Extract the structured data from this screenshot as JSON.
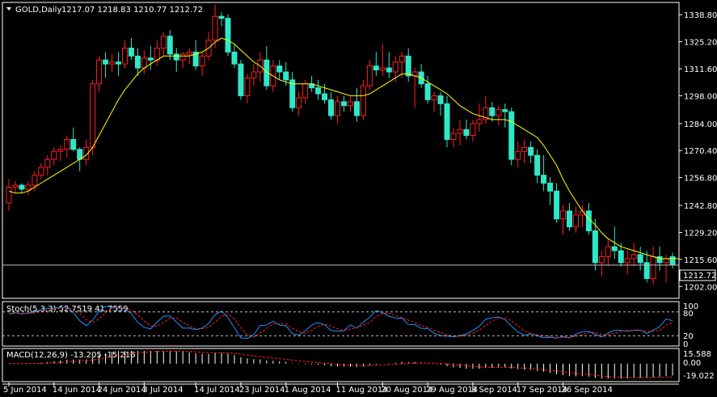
{
  "chart_data": {
    "type": "candlestick",
    "header": {
      "symbol_timeframe": "GOLD,Daily",
      "ohlc": "1217.07 1218.83 1210.77 1212.72"
    },
    "price_axis": {
      "ticks": [
        "1338.80",
        "1325.20",
        "1311.60",
        "1298.00",
        "1284.00",
        "1270.40",
        "1256.80",
        "1242.80",
        "1229.20",
        "1215.60",
        "1202.00"
      ],
      "range": [
        1196,
        1345
      ],
      "last_price": "1212.72"
    },
    "x_axis_labels": [
      "5 Jun 2014",
      "14 Jun 2014",
      "24 Jun 2014",
      "3 Jul 2014",
      "14 Jul 2014",
      "23 Jul 2014",
      "1 Aug 2014",
      "11 Aug 2014",
      "20 Aug 2014",
      "29 Aug 2014",
      "8 Sep 2014",
      "17 Sep 2014",
      "26 Sep 2014"
    ],
    "x_axis_label_index": [
      0,
      7,
      14,
      21,
      29,
      36,
      43,
      51,
      58,
      65,
      72,
      79,
      86
    ],
    "candles": [
      [
        1244,
        1256,
        1240,
        1252
      ],
      [
        1252,
        1255,
        1249,
        1253
      ],
      [
        1253,
        1254,
        1249,
        1251
      ],
      [
        1251,
        1255,
        1248,
        1253
      ],
      [
        1253,
        1260,
        1250,
        1258
      ],
      [
        1258,
        1264,
        1256,
        1262
      ],
      [
        1262,
        1268,
        1258,
        1266
      ],
      [
        1266,
        1272,
        1263,
        1270
      ],
      [
        1270,
        1273,
        1265,
        1271
      ],
      [
        1271,
        1278,
        1267,
        1276
      ],
      [
        1276,
        1282,
        1270,
        1271
      ],
      [
        1271,
        1272,
        1260,
        1266
      ],
      [
        1266,
        1276,
        1263,
        1272
      ],
      [
        1272,
        1306,
        1268,
        1304
      ],
      [
        1304,
        1318,
        1300,
        1316
      ],
      [
        1316,
        1320,
        1307,
        1314
      ],
      [
        1314,
        1319,
        1310,
        1315
      ],
      [
        1315,
        1320,
        1308,
        1314
      ],
      [
        1314,
        1326,
        1312,
        1322
      ],
      [
        1322,
        1327,
        1316,
        1318
      ],
      [
        1318,
        1322,
        1308,
        1312
      ],
      [
        1312,
        1321,
        1309,
        1317
      ],
      [
        1317,
        1323,
        1311,
        1316
      ],
      [
        1316,
        1326,
        1313,
        1322
      ],
      [
        1322,
        1330,
        1318,
        1328
      ],
      [
        1328,
        1331,
        1316,
        1319
      ],
      [
        1319,
        1322,
        1310,
        1316
      ],
      [
        1316,
        1320,
        1312,
        1319
      ],
      [
        1319,
        1322,
        1314,
        1320
      ],
      [
        1320,
        1326,
        1311,
        1313
      ],
      [
        1313,
        1320,
        1308,
        1318
      ],
      [
        1318,
        1330,
        1316,
        1326
      ],
      [
        1326,
        1344,
        1322,
        1338
      ],
      [
        1338,
        1340,
        1333,
        1337
      ],
      [
        1337,
        1339,
        1318,
        1320
      ],
      [
        1320,
        1324,
        1312,
        1314
      ],
      [
        1314,
        1316,
        1296,
        1298
      ],
      [
        1298,
        1309,
        1294,
        1307
      ],
      [
        1307,
        1314,
        1303,
        1310
      ],
      [
        1310,
        1320,
        1305,
        1316
      ],
      [
        1316,
        1323,
        1301,
        1303
      ],
      [
        1303,
        1316,
        1300,
        1313
      ],
      [
        1313,
        1316,
        1306,
        1310
      ],
      [
        1310,
        1315,
        1303,
        1306
      ],
      [
        1306,
        1310,
        1290,
        1292
      ],
      [
        1292,
        1300,
        1288,
        1297
      ],
      [
        1297,
        1306,
        1294,
        1304
      ],
      [
        1304,
        1308,
        1300,
        1302
      ],
      [
        1302,
        1306,
        1296,
        1299
      ],
      [
        1299,
        1304,
        1294,
        1296
      ],
      [
        1296,
        1300,
        1286,
        1288
      ],
      [
        1288,
        1298,
        1284,
        1295
      ],
      [
        1295,
        1298,
        1290,
        1293
      ],
      [
        1293,
        1298,
        1290,
        1295
      ],
      [
        1295,
        1302,
        1285,
        1288
      ],
      [
        1288,
        1306,
        1286,
        1303
      ],
      [
        1303,
        1316,
        1301,
        1313
      ],
      [
        1313,
        1320,
        1308,
        1311
      ],
      [
        1311,
        1324,
        1308,
        1312
      ],
      [
        1312,
        1320,
        1307,
        1310
      ],
      [
        1310,
        1318,
        1305,
        1315
      ],
      [
        1315,
        1320,
        1307,
        1318
      ],
      [
        1318,
        1322,
        1305,
        1308
      ],
      [
        1308,
        1312,
        1292,
        1310
      ],
      [
        1310,
        1314,
        1302,
        1304
      ],
      [
        1304,
        1308,
        1294,
        1296
      ],
      [
        1296,
        1300,
        1290,
        1298
      ],
      [
        1298,
        1300,
        1288,
        1294
      ],
      [
        1294,
        1298,
        1272,
        1276
      ],
      [
        1276,
        1282,
        1272,
        1279
      ],
      [
        1279,
        1286,
        1273,
        1281
      ],
      [
        1281,
        1286,
        1276,
        1278
      ],
      [
        1278,
        1286,
        1275,
        1284
      ],
      [
        1284,
        1294,
        1280,
        1286
      ],
      [
        1286,
        1298,
        1284,
        1292
      ],
      [
        1292,
        1295,
        1285,
        1288
      ],
      [
        1288,
        1293,
        1283,
        1291
      ],
      [
        1291,
        1294,
        1282,
        1290
      ],
      [
        1290,
        1292,
        1263,
        1266
      ],
      [
        1266,
        1275,
        1262,
        1270
      ],
      [
        1270,
        1276,
        1264,
        1272
      ],
      [
        1272,
        1275,
        1264,
        1268
      ],
      [
        1268,
        1271,
        1254,
        1258
      ],
      [
        1258,
        1268,
        1250,
        1254
      ],
      [
        1254,
        1257,
        1243,
        1250
      ],
      [
        1250,
        1254,
        1234,
        1236
      ],
      [
        1236,
        1243,
        1228,
        1240
      ],
      [
        1240,
        1244,
        1230,
        1232
      ],
      [
        1232,
        1242,
        1229,
        1238
      ],
      [
        1238,
        1243,
        1232,
        1240
      ],
      [
        1240,
        1244,
        1228,
        1230
      ],
      [
        1230,
        1236,
        1210,
        1214
      ],
      [
        1214,
        1220,
        1207,
        1217
      ],
      [
        1217,
        1226,
        1212,
        1222
      ],
      [
        1222,
        1232,
        1216,
        1220
      ],
      [
        1220,
        1224,
        1212,
        1214
      ],
      [
        1214,
        1220,
        1208,
        1216
      ],
      [
        1216,
        1224,
        1212,
        1218
      ],
      [
        1218,
        1222,
        1210,
        1214
      ],
      [
        1214,
        1220,
        1204,
        1206
      ],
      [
        1206,
        1222,
        1203,
        1217
      ],
      [
        1217,
        1222,
        1210,
        1214
      ],
      [
        1214,
        1218,
        1204,
        1216
      ],
      [
        1217,
        1219,
        1211,
        1213
      ]
    ],
    "moving_average": {
      "color": "#ffff00",
      "values": [
        1250,
        1249,
        1249,
        1250,
        1252,
        1254,
        1256,
        1258,
        1260,
        1262,
        1264,
        1266,
        1268,
        1272,
        1278,
        1284,
        1290,
        1296,
        1301,
        1305,
        1309,
        1312,
        1314,
        1316,
        1318,
        1318,
        1318,
        1318,
        1318,
        1319,
        1320,
        1322,
        1325,
        1327,
        1326,
        1324,
        1321,
        1318,
        1315,
        1313,
        1310,
        1308,
        1306,
        1305,
        1304,
        1304,
        1304,
        1304,
        1303,
        1302,
        1301,
        1300,
        1299,
        1298,
        1298,
        1298,
        1299,
        1301,
        1303,
        1305,
        1307,
        1309,
        1309,
        1308,
        1307,
        1305,
        1303,
        1301,
        1299,
        1296,
        1293,
        1291,
        1289,
        1288,
        1287,
        1286,
        1286,
        1286,
        1285,
        1283,
        1281,
        1279,
        1277,
        1273,
        1268,
        1263,
        1256,
        1250,
        1245,
        1240,
        1236,
        1233,
        1229,
        1226,
        1224,
        1222,
        1221,
        1220,
        1219,
        1218,
        1217,
        1216,
        1216,
        1216,
        1216
      ]
    },
    "stochastic": {
      "label": "Stoch(5,3,3) 52.7519 41.7559",
      "levels": [
        "100",
        "80",
        "20",
        "0"
      ],
      "main_color": "#1e90ff",
      "signal_color": "#ff2020"
    },
    "macd": {
      "label": "MACD(12,26,9) -13.205 -15.216",
      "ticks": [
        "15.588",
        "0.00",
        "-19.022"
      ],
      "range": [
        -19.022,
        15.588
      ],
      "histogram_color": "#ffffff",
      "signal_color": "#ff2020"
    },
    "colors": {
      "background": "#000000",
      "bull": "#000000",
      "bull_border": "#ff2020",
      "bear": "#2ee8c8",
      "axis": "#ffffff"
    }
  }
}
